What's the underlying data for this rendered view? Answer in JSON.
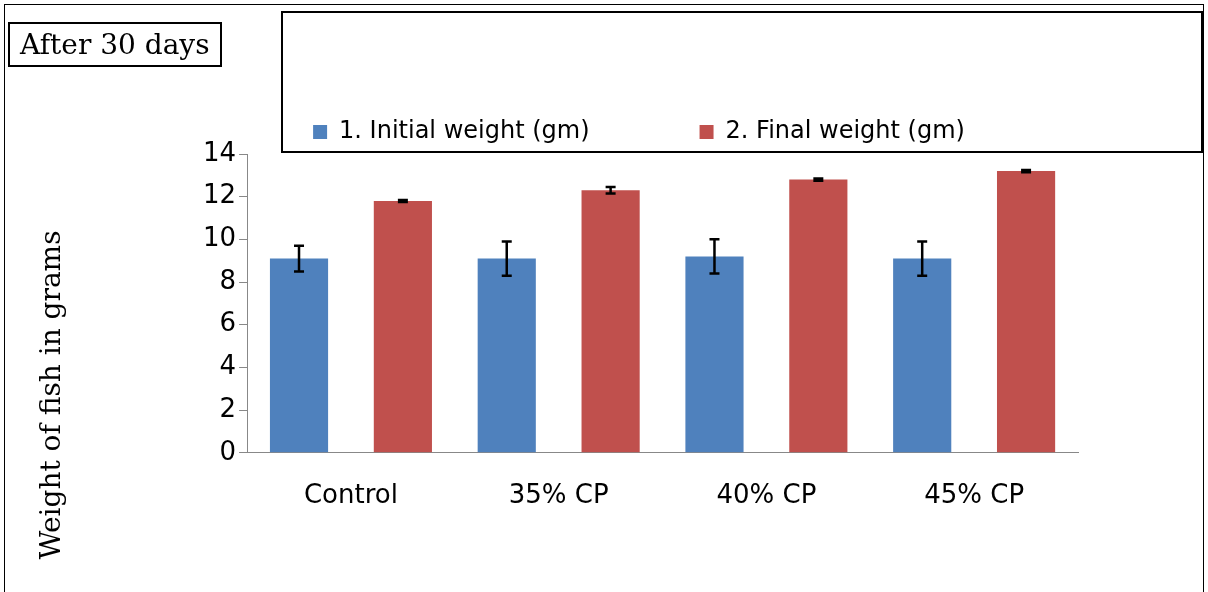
{
  "chart_data": {
    "type": "bar",
    "ylabel": "Weight of fish in grams",
    "annotations": [
      "After 30 days"
    ],
    "categories": [
      "Control",
      "35% CP",
      "40% CP",
      "45% CP"
    ],
    "series": [
      {
        "name": "1. Initial weight (gm)",
        "color": "#4f81bd",
        "values": [
          9.1,
          9.1,
          9.2,
          9.1
        ],
        "errors": [
          0.6,
          0.8,
          0.8,
          0.8
        ]
      },
      {
        "name": "2. Final weight (gm)",
        "color": "#c0504d",
        "values": [
          11.8,
          12.3,
          12.8,
          13.2
        ],
        "errors": [
          0.05,
          0.15,
          0.05,
          0.05
        ]
      }
    ],
    "ylim": [
      0,
      14
    ],
    "yticks": [
      0,
      2,
      4,
      6,
      8,
      10,
      12,
      14
    ],
    "grid": false,
    "legend": "top"
  }
}
